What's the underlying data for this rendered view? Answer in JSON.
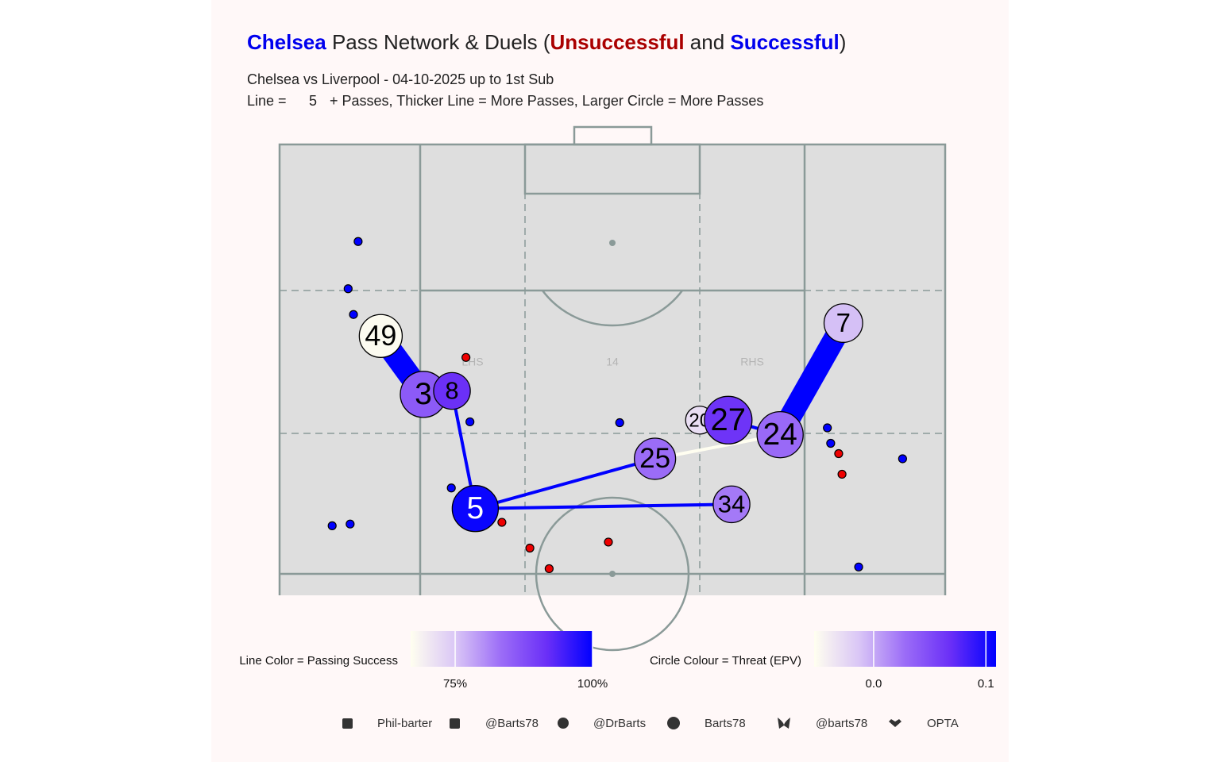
{
  "chart_data": {
    "type": "pass-network",
    "title_parts": [
      {
        "text": "Chelsea",
        "color": "#0000ee",
        "bold": true
      },
      {
        "text": " Pass Network & Duels (",
        "color": "#222222",
        "bold": false
      },
      {
        "text": "Unsuccessful",
        "color": "#aa0000",
        "bold": true
      },
      {
        "text": " and ",
        "color": "#222222",
        "bold": false
      },
      {
        "text": "Successful",
        "color": "#0000ee",
        "bold": true
      },
      {
        "text": ")",
        "color": "#222222",
        "bold": false
      }
    ],
    "subtitle": "Chelsea vs Liverpool - 04-10-2025 up to 1st Sub",
    "caption_prefix": "Line =",
    "min_passes": 5,
    "caption_suffix": "+ Passes, Thicker Line = More Passes, Larger Circle = More Passes",
    "zone_labels": [
      "LHS",
      "14",
      "RHS"
    ],
    "xlim": [
      0,
      100
    ],
    "ylim": [
      47.5,
      100
    ],
    "nodes": [
      {
        "label": "49",
        "x": 15.2,
        "y": 77.7,
        "passes": 26,
        "epv": -0.05
      },
      {
        "label": "3",
        "x": 21.6,
        "y": 70.9,
        "passes": 30,
        "epv": 0.04
      },
      {
        "label": "8",
        "x": 25.9,
        "y": 71.3,
        "passes": 19,
        "epv": 0.068
      },
      {
        "label": "5",
        "x": 29.4,
        "y": 57.6,
        "passes": 30,
        "epv": 0.105
      },
      {
        "label": "25",
        "x": 56.4,
        "y": 63.4,
        "passes": 24,
        "epv": 0.028
      },
      {
        "label": "20",
        "x": 63.1,
        "y": 67.9,
        "passes": 11,
        "epv": -0.03
      },
      {
        "label": "27",
        "x": 67.4,
        "y": 67.9,
        "passes": 32,
        "epv": 0.065
      },
      {
        "label": "24",
        "x": 75.2,
        "y": 66.2,
        "passes": 30,
        "epv": 0.03
      },
      {
        "label": "7",
        "x": 84.7,
        "y": 79.2,
        "passes": 21,
        "epv": -0.01
      },
      {
        "label": "34",
        "x": 67.9,
        "y": 58.1,
        "passes": 19,
        "epv": 0.022
      }
    ],
    "edges": [
      {
        "from": "49",
        "to": "3",
        "passes": 12,
        "success": 100
      },
      {
        "from": "8",
        "to": "5",
        "passes": 5,
        "success": 100
      },
      {
        "from": "5",
        "to": "25",
        "passes": 5,
        "success": 100
      },
      {
        "from": "5",
        "to": "34",
        "passes": 5,
        "success": 100
      },
      {
        "from": "25",
        "to": "24",
        "passes": 5,
        "success": 67
      },
      {
        "from": "27",
        "to": "24",
        "passes": 5,
        "success": 100
      },
      {
        "from": "24",
        "to": "7",
        "passes": 12,
        "success": 100
      }
    ],
    "duels": {
      "successful": {
        "color": "#0000ff",
        "x": [
          11.8,
          10.3,
          11.1,
          28.6,
          51.1,
          25.8,
          7.9,
          10.6,
          82.3,
          82.8,
          93.6,
          87.0
        ],
        "y": [
          88.7,
          83.2,
          80.2,
          67.7,
          67.6,
          60.0,
          55.6,
          55.8,
          67.0,
          65.2,
          63.4,
          50.8
        ]
      },
      "unsuccessful": {
        "color": "#ee0000",
        "x": [
          28.0,
          33.4,
          37.6,
          40.5,
          49.4,
          84.0,
          84.5
        ],
        "y": [
          75.2,
          56.0,
          53.0,
          50.6,
          53.7,
          64.0,
          61.6
        ]
      }
    },
    "line_legend": {
      "title": "Line Color = Passing Success",
      "lim": [
        66.9,
        100
      ],
      "ticks": [
        {
          "value": 75,
          "label": "75%"
        },
        {
          "value": 100,
          "label": "100%"
        }
      ],
      "colors": [
        "#fffff0",
        "#d9c5f6",
        "#9b6cf7",
        "#6a2ff7",
        "#0000ff"
      ]
    },
    "circle_legend": {
      "title": "Circle Colour = Threat (EPV)",
      "lim": [
        -0.053,
        0.109
      ],
      "ticks": [
        {
          "value": 0,
          "label": "0.0"
        },
        0.1
      ],
      "colors": [
        "#fffff0",
        "#d9c5f6",
        "#9b6cf7",
        "#6a2ff7",
        "#0000ff"
      ]
    },
    "footer": [
      "Phil-barter",
      "@Barts78",
      "@DrBarts",
      "Barts78",
      "@barts78",
      "OPTA"
    ]
  }
}
